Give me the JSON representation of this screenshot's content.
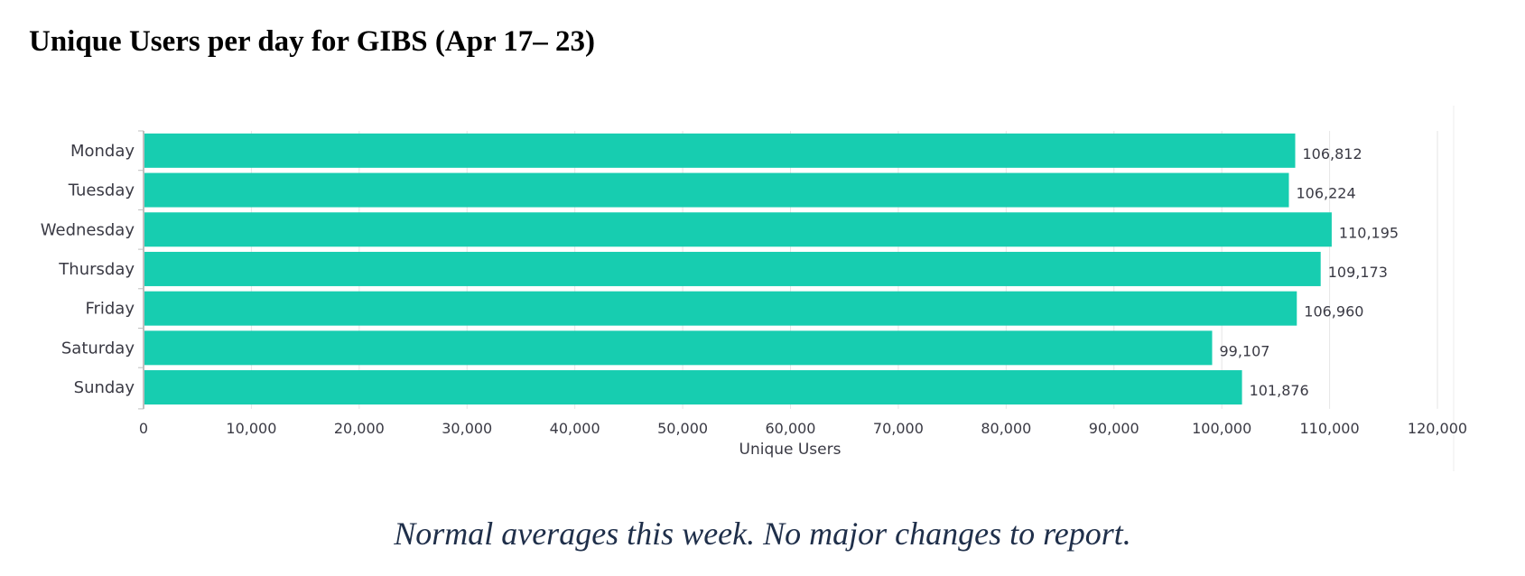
{
  "title": "Unique Users per day for GIBS (Apr 17– 23)",
  "note": "Normal averages this week.  No major changes to report.",
  "chart_data": {
    "type": "bar",
    "orientation": "horizontal",
    "categories": [
      "Monday",
      "Tuesday",
      "Wednesday",
      "Thursday",
      "Friday",
      "Saturday",
      "Sunday"
    ],
    "values": [
      106812,
      106224,
      110195,
      109173,
      106960,
      99107,
      101876
    ],
    "value_labels": [
      "106,812",
      "106,224",
      "110,195",
      "109,173",
      "106,960",
      "99,107",
      "101,876"
    ],
    "xlabel": "Unique Users",
    "ylabel": "",
    "xlim": [
      0,
      120000
    ],
    "x_ticks": [
      0,
      10000,
      20000,
      30000,
      40000,
      50000,
      60000,
      70000,
      80000,
      90000,
      100000,
      110000,
      120000
    ],
    "x_tick_labels": [
      "0",
      "10,000",
      "20,000",
      "30,000",
      "40,000",
      "50,000",
      "60,000",
      "70,000",
      "80,000",
      "90,000",
      "100,000",
      "110,000",
      "120,000"
    ],
    "grid": true,
    "bar_color": "#17cdb0"
  }
}
